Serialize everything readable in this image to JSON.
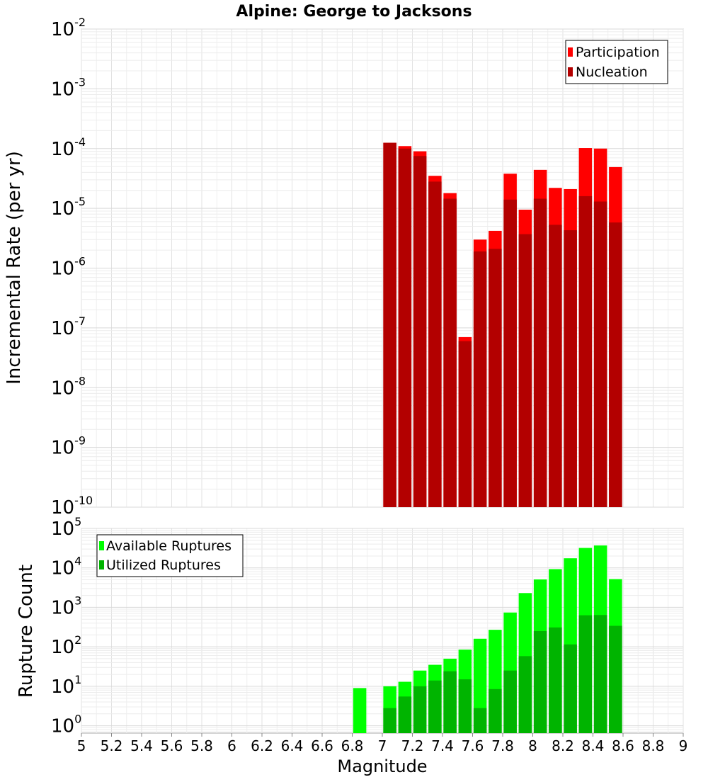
{
  "chart_data": [
    {
      "type": "bar",
      "title": "Alpine: George to Jacksons",
      "ylabel": "Incremental Rate (per yr)",
      "yscale": "log",
      "ylim": [
        1e-10,
        0.01
      ],
      "xlim": [
        5,
        9
      ],
      "grid": true,
      "legend_placement": "top-right",
      "y_tick_exponents": [
        "-10",
        "-9",
        "-8",
        "-7",
        "-6",
        "-5",
        "-4",
        "-3",
        "-2"
      ],
      "x": [
        7.05,
        7.15,
        7.25,
        7.35,
        7.45,
        7.55,
        7.65,
        7.75,
        7.85,
        7.95,
        8.05,
        8.15,
        8.25,
        8.35,
        8.45,
        8.55
      ],
      "series": [
        {
          "name": "Participation",
          "color": "#ff0000",
          "values": [
            0.000125,
            0.00011,
            9e-05,
            3.5e-05,
            1.8e-05,
            7e-08,
            3e-06,
            4.2e-06,
            3.8e-05,
            9.5e-06,
            4.4e-05,
            2.2e-05,
            2.1e-05,
            0.000102,
            0.0001,
            4.9e-05
          ]
        },
        {
          "name": "Nucleation",
          "color": "#b30000",
          "values": [
            0.000125,
            0.0001,
            7.5e-05,
            2.8e-05,
            1.45e-05,
            6e-08,
            1.9e-06,
            2.1e-06,
            1.4e-05,
            3.7e-06,
            1.45e-05,
            5.3e-06,
            4.3e-06,
            1.6e-05,
            1.3e-05,
            5.8e-06
          ]
        }
      ]
    },
    {
      "type": "bar",
      "xlabel": "Magnitude",
      "ylabel": "Rupture Count",
      "yscale": "log",
      "ylim": [
        0.65,
        100000
      ],
      "xlim": [
        5,
        9
      ],
      "grid": true,
      "legend_placement": "top-left",
      "y_tick_exponents": [
        "0",
        "1",
        "2",
        "3",
        "4",
        "5"
      ],
      "x_ticks": [
        "5",
        "5.2",
        "5.4",
        "5.6",
        "5.8",
        "6",
        "6.2",
        "6.4",
        "6.6",
        "6.8",
        "7",
        "7.2",
        "7.4",
        "7.6",
        "7.8",
        "8",
        "8.2",
        "8.4",
        "8.6",
        "8.8",
        "9"
      ],
      "x": [
        6.85,
        7.05,
        7.15,
        7.25,
        7.35,
        7.45,
        7.55,
        7.65,
        7.75,
        7.85,
        7.95,
        8.05,
        8.15,
        8.25,
        8.35,
        8.45,
        8.55
      ],
      "series": [
        {
          "name": "Available Ruptures",
          "color": "#00ff00",
          "values": [
            9,
            10,
            13,
            25,
            35,
            50,
            85,
            160,
            270,
            740,
            2300,
            5100,
            9300,
            17500,
            32000,
            37000,
            5200
          ]
        },
        {
          "name": "Utilized Ruptures",
          "color": "#00b400",
          "values": [
            0,
            2.8,
            5.5,
            10,
            14,
            24,
            15,
            2.8,
            8.5,
            25,
            58,
            250,
            310,
            115,
            630,
            640,
            340
          ]
        }
      ]
    }
  ]
}
